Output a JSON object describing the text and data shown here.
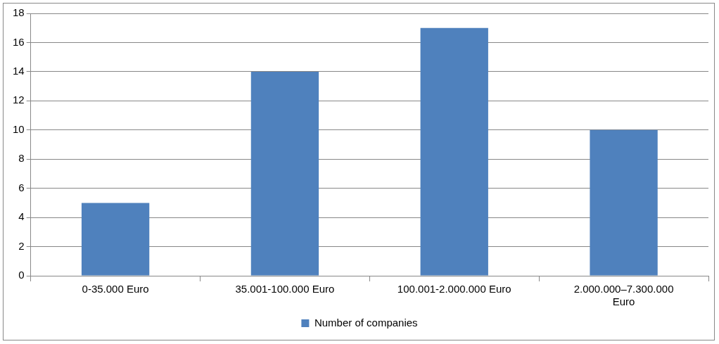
{
  "chart_data": {
    "type": "bar",
    "categories": [
      "0-35.000 Euro",
      "35.001-100.000 Euro",
      "100.001-2.000.000 Euro",
      "2.000.000–7.300.000 Euro"
    ],
    "series": [
      {
        "name": "Number of companies",
        "color": "#4f81bd",
        "values": [
          5,
          14,
          17,
          10
        ]
      }
    ],
    "ylim": [
      0,
      18
    ],
    "yticks": [
      0,
      2,
      4,
      6,
      8,
      10,
      12,
      14,
      16,
      18
    ],
    "grid": "y",
    "legend": "bottom"
  }
}
